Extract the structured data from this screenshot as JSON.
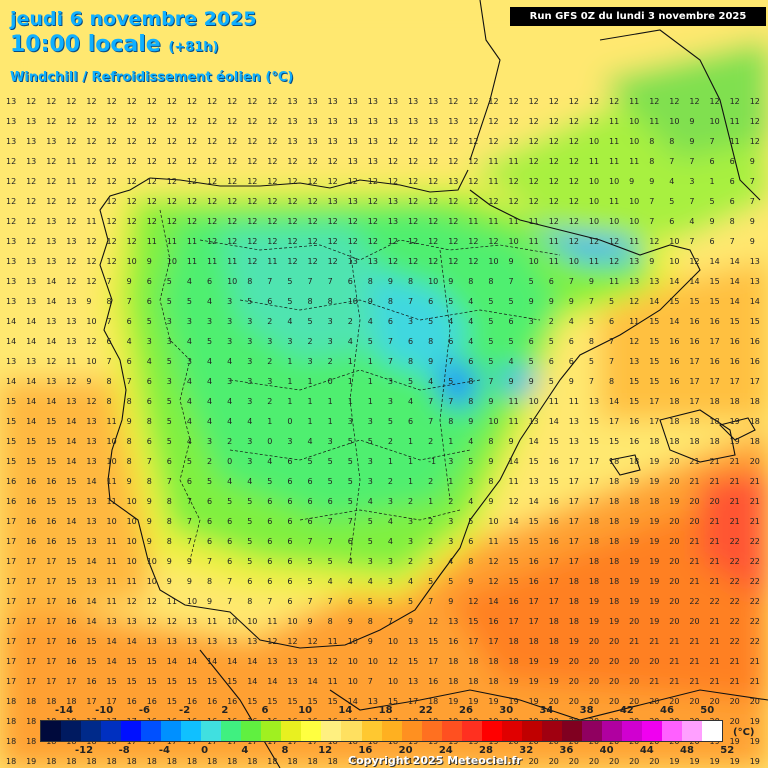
{
  "title": {
    "date": "jeudi 6 novembre 2025",
    "time": "10:00 locale",
    "offset": "(+81h)",
    "field": "Windchill / Refroidissement éolien (°C)"
  },
  "run_info": "Run GFS 0Z du lundi 3 novembre 2025",
  "legend": {
    "top_labels": [
      "-14",
      "-10",
      "-6",
      "-2",
      "2",
      "6",
      "10",
      "14",
      "18",
      "22",
      "26",
      "30",
      "34",
      "38",
      "42",
      "46",
      "50"
    ],
    "bottom_labels": [
      "-12",
      "-8",
      "-4",
      "0",
      "4",
      "8",
      "12",
      "16",
      "20",
      "24",
      "28",
      "32",
      "36",
      "40",
      "44",
      "48",
      "52"
    ],
    "unit": "(°C)",
    "colors": [
      "#000a3c",
      "#001a60",
      "#002a8a",
      "#0030c0",
      "#0010ff",
      "#0050ff",
      "#0090ff",
      "#10c0ff",
      "#40e0e0",
      "#40f080",
      "#60f040",
      "#a0f020",
      "#e8f020",
      "#ffff40",
      "#fff080",
      "#ffe060",
      "#ffc830",
      "#ffb020",
      "#ff9020",
      "#ff7020",
      "#ff5020",
      "#ff3020",
      "#ff0000",
      "#e00000",
      "#c00000",
      "#a00010",
      "#800020",
      "#900060",
      "#b000a0",
      "#d000d0",
      "#f000f0",
      "#ff60ff",
      "#ffa0ff",
      "#ffffff"
    ]
  },
  "copyright": "Copyright 2025 Meteociel.fr",
  "grid_values": {
    "rows": [
      "13 12 12 12 12 12 12 12 12 12 12 12 12 12 13 13 13 13 13 13 13 13 12 12 12 12 12 12 12 12 12 11 12 12 12 12 12 12",
      "13 13 12 12 12 12 12 12 12 12 12 12 12 12 13 13 13 13 13 13 13 13 13 12 12 12 12 12 12 12 11 10 11 10 9 10 11 12",
      "13 13 13 12 12 12 12 12 12 12 12 12 12 12 13 13 13 13 13 12 12 12 12 12 12 12 12 12 12 10 11 10 8 8 9 7 11 12",
      "12 13 12 11 12 12 12 12 12 12 12 12 12 12 12 12 12 13 13 12 12 12 12 12 11 11 12 12 12 11 11 11 8 7 7 6 6 9",
      "12 12 12 11 12 12 12 12 12 12 12 12 12 12 12 12 12 12 12 12 12 12 13 12 11 12 12 12 12 10 10 9 9 4 3 1 6 7",
      "12 12 12 12 12 12 12 12 12 12 12 12 12 12 12 12 13 13 12 13 12 12 12 12 12 12 12 12 12 10 11 10 7 5 7 5 6 7",
      "12 12 13 12 11 12 12 12 12 12 12 12 12 12 12 12 12 12 12 13 12 12 12 11 11 11 11 12 12 10 10 10 7 6 4 9 8 9",
      "13 12 13 13 12 12 12 11 11 11 12 12 12 12 12 12 12 12 12 12 12 12 12 12 12 10 11 11 12 12 12 11 12 10 7 6 7 9",
      "13 13 13 12 12 12 10 9 10 11 11 11 12 11 12 12 12 13 13 12 12 12 12 12 10 9 10 11 10 11 12 13 9 10 12 14 14 13",
      "13 13 14 12 12 7 9 6 5 4 6 10 8 7 5 7 7 6 8 9 8 10 9 8 8 7 5 6 7 9 11 13 13 14 14 15 14 13",
      "13 13 14 13 9 8 7 6 5 5 4 3 5 6 5 8 8 10 9 8 7 6 5 4 5 5 9 9 9 7 5 12 14 15 15 15 14 14",
      "14 14 13 13 10 7 6 5 3 3 3 3 3 2 4 5 3 2 4 6 3 5 4 4 5 6 3 2 4 5 6 11 15 14 16 16 15 15",
      "14 14 14 13 12 6 4 3 3 4 5 3 3 3 3 2 3 4 5 7 6 8 6 4 5 5 6 5 6 8 7 12 15 16 16 17 16 16",
      "13 13 12 11 10 7 6 4 5 3 4 4 3 2 1 3 2 1 1 7 8 9 7 6 5 4 5 6 6 5 7 13 15 16 17 16 16 16",
      "14 14 13 12 9 8 7 6 3 4 4 3 3 3 1 1 0 1 1 3 5 4 5 8 7 9 9 5 9 7 8 15 15 16 17 17 17 17",
      "15 14 14 13 12 8 8 6 5 4 4 4 3 2 1 1 1 1 1 3 4 7 7 8 9 11 10 11 11 13 14 15 17 18 17 18 18 18",
      "15 14 15 14 13 11 9 8 5 4 4 4 4 1 0 1 1 3 3 5 6 7 8 9 10 11 13 14 13 15 17 16 17 18 18 18 19 18",
      "15 15 15 14 13 10 8 6 5 4 3 2 3 0 3 4 3 5 5 2 1 2 1 4 8 9 14 15 13 15 15 16 18 18 18 18 19 18",
      "15 15 15 14 13 10 8 7 6 5 2 0 3 4 6 5 5 5 3 1 1 -1 3 5 9 14 15 16 17 17 18 18 19 20 21 21 21 20",
      "16 16 16 15 14 11 9 8 7 6 5 4 4 5 6 6 5 5 3 2 1 2 1 3 8 11 13 15 17 17 18 19 19 20 21 21 21 21",
      "16 16 15 15 13 11 10 9 8 7 6 5 5 6 6 6 6 5 4 3 2 1 2 4 9 12 14 16 17 17 18 18 18 19 20 20 21 21",
      "17 16 16 14 13 10 10 9 8 7 6 6 5 6 6 6 7 7 5 4 3 2 3 5 10 14 15 16 17 18 18 19 19 20 20 21 21 21",
      "17 16 16 15 13 11 10 9 8 7 6 6 5 6 6 7 7 6 5 4 3 2 3 6 11 15 15 16 17 18 18 19 19 20 21 21 22 22",
      "17 17 17 15 14 11 10 10 9 9 7 6 5 6 6 5 5 4 3 3 2 3 4 8 12 15 16 17 17 18 18 19 19 20 21 21 22 22",
      "17 17 17 15 13 11 11 10 9 9 8 7 6 6 6 5 4 4 4 3 4 5 5 9 12 15 16 17 18 18 18 19 19 20 21 21 22 22",
      "17 17 17 16 14 11 12 12 11 10 9 7 8 7 6 7 7 6 5 5 5 7 9 12 14 16 17 17 18 19 18 19 19 20 22 22 22 22",
      "17 17 17 16 14 13 13 12 12 13 11 10 10 11 10 9 8 9 8 7 9 12 13 15 16 17 17 18 18 19 19 20 19 20 20 21 22 22",
      "17 17 17 16 15 14 14 13 13 13 13 13 13 12 12 12 11 10 9 10 13 15 16 17 17 18 18 18 19 20 20 21 21 21 21 21 22 22",
      "17 17 17 16 15 14 15 15 14 14 14 14 14 13 13 13 12 10 10 12 15 17 18 18 18 18 19 19 20 20 20 20 20 21 21 21 21 21",
      "17 17 17 17 16 15 15 15 15 15 15 15 14 14 13 14 11 10 7 10 13 16 18 18 18 19 19 19 20 20 20 20 21 21 21 21 21 21",
      "18 18 18 18 17 17 16 16 15 16 16 16 15 15 15 15 15 14 13 15 17 18 19 19 19 19 19 20 20 20 20 20 20 20 20 20 20 20",
      "18 18 18 18 17 17 17 16 16 16 16 16 16 16 16 16 16 16 17 17 18 18 19 19 19 19 19 20 20 20 20 20 20 20 20 20 20 19",
      "18 18 18 18 18 18 17 17 17 17 17 17 17 17 17 17 18 18 18 18 19 19 19 19 19 20 20 20 20 20 20 20 20 20 20 19 19 19",
      "18 19 18 18 18 18 18 18 18 18 18 18 18 18 18 18 18 18 19 19 19 19 19 19 19 19 20 20 20 20 20 20 20 19 19 19 19 19",
      "19 19 19 19 19 19 18 18 18 18 18 18 18 18 18 18 18 19 19 19 19 19 19 19 19 19 19 19 19 19 19 19 19 19 19 19 19 19"
    ]
  }
}
